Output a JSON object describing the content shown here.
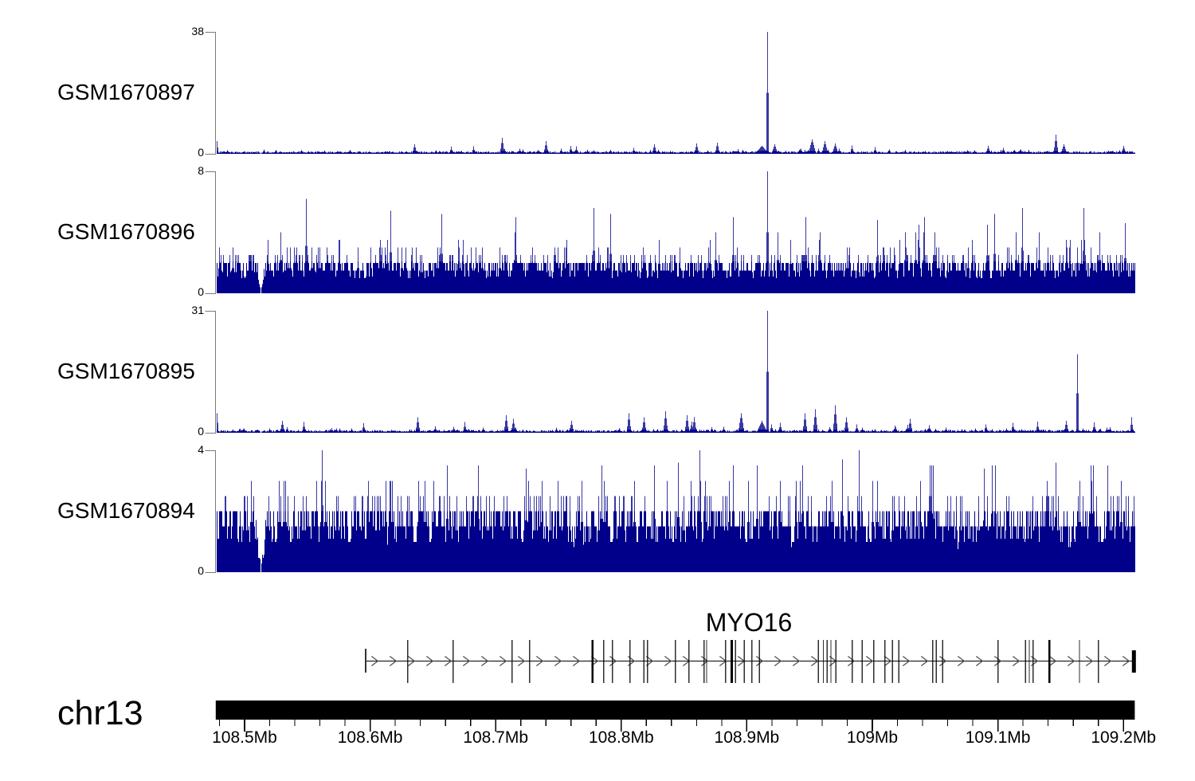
{
  "figure_type": "genome-browser-coverage-tracks",
  "chromosome_label": "chr13",
  "colors": {
    "coverage": "#00008B",
    "axis_gray": "#7a7a7a",
    "ink": "#000000"
  },
  "gene": {
    "name": "MYO16",
    "strand": "+",
    "start_mb": 108.596,
    "end_mb": 109.208,
    "exons_mb": [
      [
        108.63,
        1
      ],
      [
        108.666,
        1
      ],
      [
        108.713,
        1
      ],
      [
        108.727,
        1
      ],
      [
        108.777,
        2
      ],
      [
        108.786,
        1
      ],
      [
        108.793,
        1
      ],
      [
        108.807,
        1
      ],
      [
        108.818,
        1
      ],
      [
        108.821,
        1
      ],
      [
        108.843,
        1
      ],
      [
        108.854,
        1
      ],
      [
        108.866,
        1
      ],
      [
        108.868,
        1
      ],
      [
        108.883,
        1
      ],
      [
        108.888,
        2
      ],
      [
        108.891,
        1
      ],
      [
        108.898,
        1
      ],
      [
        108.904,
        1
      ],
      [
        108.91,
        1
      ],
      [
        108.957,
        1
      ],
      [
        108.961,
        1
      ],
      [
        108.964,
        1
      ],
      [
        108.967,
        1
      ],
      [
        108.971,
        1
      ],
      [
        108.984,
        1
      ],
      [
        108.992,
        1
      ],
      [
        109.001,
        1
      ],
      [
        109.01,
        1
      ],
      [
        109.016,
        1
      ],
      [
        109.021,
        1
      ],
      [
        109.048,
        1
      ],
      [
        109.051,
        1
      ],
      [
        109.056,
        1
      ],
      [
        109.1,
        1
      ],
      [
        109.122,
        1
      ],
      [
        109.125,
        1
      ],
      [
        109.128,
        1
      ],
      [
        109.141,
        2
      ],
      [
        109.165,
        1
      ],
      [
        109.18,
        1
      ]
    ]
  },
  "axis": {
    "start_mb": 108.477,
    "end_mb": 109.209,
    "minor_tick_interval_mb": 0.02,
    "major_ticks": [
      {
        "mb": 108.5,
        "label": "108.5Mb"
      },
      {
        "mb": 108.6,
        "label": "108.6Mb"
      },
      {
        "mb": 108.7,
        "label": "108.7Mb"
      },
      {
        "mb": 108.8,
        "label": "108.8Mb"
      },
      {
        "mb": 108.9,
        "label": "108.9Mb"
      },
      {
        "mb": 109.0,
        "label": "109Mb"
      },
      {
        "mb": 109.1,
        "label": "109.1Mb"
      },
      {
        "mb": 109.2,
        "label": "109.2Mb"
      }
    ]
  },
  "chart_data": {
    "type": "area",
    "x_units": "Mb on chr13",
    "x_range_mb": [
      108.477,
      109.209
    ],
    "tracks": [
      {
        "name": "GSM1670897",
        "ymax": 38,
        "ymin": 0,
        "profile": {
          "base": [
            0.1,
            0.8
          ],
          "spike_prob": 0.1,
          "spike_amp": 0.9,
          "rare_prob": 0.012,
          "rare_amp": 2.2,
          "body_cap": 0.9,
          "quantize": false
        },
        "peaks": [
          {
            "mb": 108.478,
            "h": 4,
            "w": 1
          },
          {
            "mb": 108.635,
            "h": 3,
            "w": 2
          },
          {
            "mb": 108.705,
            "h": 5,
            "w": 2
          },
          {
            "mb": 108.74,
            "h": 4,
            "w": 2
          },
          {
            "mb": 108.826,
            "h": 3,
            "w": 2
          },
          {
            "mb": 108.86,
            "h": 3.2,
            "w": 2
          },
          {
            "mb": 108.876,
            "h": 3.5,
            "w": 2
          },
          {
            "mb": 108.912,
            "h": 2.5,
            "w": 8
          },
          {
            "mb": 108.916,
            "h": 38,
            "w": 1
          },
          {
            "mb": 108.922,
            "h": 3,
            "w": 3
          },
          {
            "mb": 108.952,
            "h": 4.5,
            "w": 4
          },
          {
            "mb": 108.962,
            "h": 4,
            "w": 3
          },
          {
            "mb": 108.97,
            "h": 3.2,
            "w": 3
          },
          {
            "mb": 109.092,
            "h": 2.5,
            "w": 2
          },
          {
            "mb": 109.146,
            "h": 6,
            "w": 2
          },
          {
            "mb": 109.152,
            "h": 3,
            "w": 3
          },
          {
            "mb": 109.2,
            "h": 2.5,
            "w": 2
          }
        ],
        "notches": [
          {
            "mb": 108.513,
            "w": 3
          }
        ]
      },
      {
        "name": "GSM1670896",
        "ymax": 8,
        "ymin": 0,
        "profile": {
          "base": [
            0.9,
            2.1
          ],
          "spike_prob": 0.5,
          "spike_amp": 1.1,
          "rare_prob": 0.05,
          "rare_amp": 2.2,
          "body_cap": 2.1,
          "quantize": true
        },
        "peaks": [
          {
            "mb": 108.549,
            "h": 6.2,
            "w": 1
          },
          {
            "mb": 108.616,
            "h": 5.4,
            "w": 1
          },
          {
            "mb": 108.657,
            "h": 5.2,
            "w": 1
          },
          {
            "mb": 108.716,
            "h": 5.0,
            "w": 1
          },
          {
            "mb": 108.778,
            "h": 5.6,
            "w": 1
          },
          {
            "mb": 108.791,
            "h": 5.2,
            "w": 1
          },
          {
            "mb": 108.889,
            "h": 5.0,
            "w": 1
          },
          {
            "mb": 108.916,
            "h": 8,
            "w": 1
          },
          {
            "mb": 108.947,
            "h": 5.0,
            "w": 1
          },
          {
            "mb": 109.004,
            "h": 4.8,
            "w": 1
          },
          {
            "mb": 109.041,
            "h": 5.0,
            "w": 1
          },
          {
            "mb": 109.097,
            "h": 5.2,
            "w": 1
          },
          {
            "mb": 109.119,
            "h": 5.6,
            "w": 1
          },
          {
            "mb": 109.168,
            "h": 5.6,
            "w": 1
          },
          {
            "mb": 109.201,
            "h": 4.6,
            "w": 1
          }
        ],
        "notches": [
          {
            "mb": 108.513,
            "w": 5
          }
        ]
      },
      {
        "name": "GSM1670895",
        "ymax": 31,
        "ymin": 0,
        "profile": {
          "base": [
            0.1,
            0.7
          ],
          "spike_prob": 0.12,
          "spike_amp": 0.9,
          "rare_prob": 0.015,
          "rare_amp": 2.5,
          "body_cap": 0.8,
          "quantize": false
        },
        "peaks": [
          {
            "mb": 108.478,
            "h": 5,
            "w": 1
          },
          {
            "mb": 108.53,
            "h": 3,
            "w": 2
          },
          {
            "mb": 108.638,
            "h": 4,
            "w": 2
          },
          {
            "mb": 108.708,
            "h": 4.5,
            "w": 2
          },
          {
            "mb": 108.714,
            "h": 3.5,
            "w": 2
          },
          {
            "mb": 108.76,
            "h": 3,
            "w": 2
          },
          {
            "mb": 108.806,
            "h": 5,
            "w": 2
          },
          {
            "mb": 108.818,
            "h": 4,
            "w": 2
          },
          {
            "mb": 108.835,
            "h": 5.5,
            "w": 2
          },
          {
            "mb": 108.852,
            "h": 4.5,
            "w": 2
          },
          {
            "mb": 108.858,
            "h": 4,
            "w": 2
          },
          {
            "mb": 108.895,
            "h": 5,
            "w": 3
          },
          {
            "mb": 108.912,
            "h": 3,
            "w": 6
          },
          {
            "mb": 108.916,
            "h": 31,
            "w": 1
          },
          {
            "mb": 108.946,
            "h": 5,
            "w": 2
          },
          {
            "mb": 108.954,
            "h": 6,
            "w": 2
          },
          {
            "mb": 108.97,
            "h": 7,
            "w": 2
          },
          {
            "mb": 108.979,
            "h": 4,
            "w": 2
          },
          {
            "mb": 109.03,
            "h": 3.5,
            "w": 2
          },
          {
            "mb": 109.154,
            "h": 3,
            "w": 2
          },
          {
            "mb": 109.163,
            "h": 20,
            "w": 1
          },
          {
            "mb": 109.206,
            "h": 4,
            "w": 1
          }
        ],
        "notches": [
          {
            "mb": 108.513,
            "w": 2
          }
        ]
      },
      {
        "name": "GSM1670894",
        "ymax": 4,
        "ymin": 0,
        "profile": {
          "base": [
            0.7,
            2.0
          ],
          "spike_prob": 0.55,
          "spike_amp": 1.0,
          "rare_prob": 0.06,
          "rare_amp": 1.6,
          "body_cap": 2.0,
          "quantize": true
        },
        "peaks": [
          {
            "mb": 108.661,
            "h": 3.5,
            "w": 1
          },
          {
            "mb": 108.686,
            "h": 3.5,
            "w": 1
          },
          {
            "mb": 108.724,
            "h": 3.4,
            "w": 1
          },
          {
            "mb": 108.784,
            "h": 3.5,
            "w": 1
          },
          {
            "mb": 108.826,
            "h": 3.5,
            "w": 1
          },
          {
            "mb": 108.845,
            "h": 3.6,
            "w": 1
          },
          {
            "mb": 108.862,
            "h": 4,
            "w": 1
          },
          {
            "mb": 108.908,
            "h": 3.5,
            "w": 1
          },
          {
            "mb": 108.976,
            "h": 3.7,
            "w": 1
          },
          {
            "mb": 108.989,
            "h": 4,
            "w": 1
          },
          {
            "mb": 109.048,
            "h": 3.5,
            "w": 1
          },
          {
            "mb": 109.089,
            "h": 3.4,
            "w": 1
          },
          {
            "mb": 109.146,
            "h": 3.6,
            "w": 1
          },
          {
            "mb": 109.187,
            "h": 3.5,
            "w": 1
          }
        ],
        "notches": [
          {
            "mb": 108.513,
            "w": 7
          }
        ]
      }
    ]
  }
}
